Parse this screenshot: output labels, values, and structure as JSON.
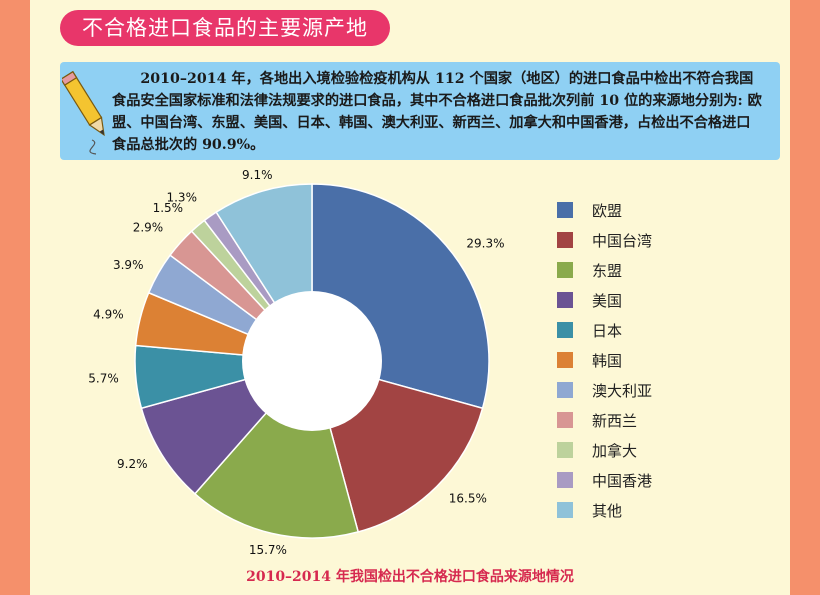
{
  "header": {
    "title": "不合格进口食品的主要源产地",
    "note": "2010–2014 年，各地出入境检验检疫机构从 112 个国家（地区）的进口食品中检出不符合我国食品安全国家标准和法律法规要求的进口食品，其中不合格进口食品批次列前 10 位的来源地分别为: 欧盟、中国台湾、东盟、美国、日本、韩国、澳大利亚、新西兰、加拿大和中国香港，占检出不合格进口食品总批次的 90.9%。"
  },
  "chart_data": {
    "type": "pie",
    "variant": "donut",
    "title": "",
    "caption": "2010–2014 年我国检出不合格进口食品来源地情况",
    "legend_position": "right",
    "categories": [
      "欧盟",
      "中国台湾",
      "东盟",
      "美国",
      "日本",
      "韩国",
      "澳大利亚",
      "新西兰",
      "加拿大",
      "中国香港",
      "其他"
    ],
    "values": [
      29.3,
      16.5,
      15.7,
      9.2,
      5.7,
      4.9,
      3.9,
      2.9,
      1.5,
      1.3,
      9.1
    ],
    "labels": [
      "29.3%",
      "16.5%",
      "15.7%",
      "9.2%",
      "5.7%",
      "4.9%",
      "3.9%",
      "2.9%",
      "1.5%",
      "1.3%",
      "9.1%"
    ],
    "colors": [
      "#4a6fa8",
      "#a24443",
      "#8aaa4c",
      "#6b5393",
      "#3b90a6",
      "#dc8134",
      "#8fa8d2",
      "#d89693",
      "#bdd29c",
      "#a99bc3",
      "#8fc2d9"
    ]
  }
}
